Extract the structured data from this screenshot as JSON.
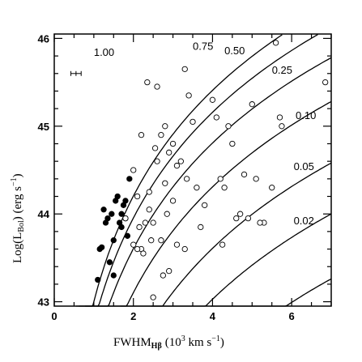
{
  "chart_data": {
    "type": "scatter",
    "xlabel": "FWHM",
    "xlabel_sub": "Hβ",
    "xlabel_units_open": "(10",
    "xlabel_units_sup": "3",
    "xlabel_units_mid": " km s",
    "xlabel_units_sup2": "−1",
    "xlabel_units_close": ")",
    "ylabel": "Log(L",
    "ylabel_sub": "Bol",
    "ylabel_units_open": ")  (erg s",
    "ylabel_units_sup": "−1",
    "ylabel_units_close": ")",
    "xlim": [
      0,
      7
    ],
    "ylim": [
      42.95,
      46.05
    ],
    "x_ticks": [
      0,
      2,
      4,
      6
    ],
    "x_tick_labels": [
      "0",
      "2",
      "4",
      "6"
    ],
    "y_ticks": [
      43,
      44,
      45,
      46
    ],
    "y_tick_labels": [
      "43",
      "44",
      "45",
      "46"
    ],
    "error_bar": {
      "x": 0.55,
      "y": 45.6,
      "xerr": 0.13
    },
    "curves": [
      {
        "label": "1.00",
        "offset": 43.0,
        "x0": 0.55,
        "label_x": 1.0,
        "label_y": 45.8
      },
      {
        "label": "0.75",
        "offset": 42.75,
        "x0": 0.62,
        "label_x": 3.5,
        "label_y": 45.87
      },
      {
        "label": "0.50",
        "offset": 42.4,
        "x0": 0.78,
        "label_x": 4.3,
        "label_y": 45.82
      },
      {
        "label": "0.25",
        "offset": 41.9,
        "x0": 1.07,
        "label_x": 5.5,
        "label_y": 45.6
      },
      {
        "label": "0.10",
        "offset": 41.2,
        "x0": 1.67,
        "label_x": 6.1,
        "label_y": 45.08
      },
      {
        "label": "0.05",
        "offset": 40.62,
        "x0": 2.45,
        "label_x": 6.05,
        "label_y": 44.5
      },
      {
        "label": "0.02",
        "offset": 39.88,
        "x0": 3.95,
        "label_x": 6.05,
        "label_y": 43.88
      }
    ],
    "series": [
      {
        "marker": "filled",
        "points": [
          [
            1.1,
            43.25
          ],
          [
            1.15,
            43.6
          ],
          [
            1.2,
            43.62
          ],
          [
            1.25,
            44.05
          ],
          [
            1.3,
            43.9
          ],
          [
            1.35,
            43.95
          ],
          [
            1.45,
            44.0
          ],
          [
            1.5,
            43.7
          ],
          [
            1.55,
            44.15
          ],
          [
            1.6,
            44.2
          ],
          [
            1.65,
            43.9
          ],
          [
            1.7,
            43.85
          ],
          [
            1.75,
            44.1
          ],
          [
            1.8,
            43.95
          ],
          [
            1.85,
            43.75
          ],
          [
            1.9,
            44.4
          ],
          [
            1.5,
            43.3
          ],
          [
            1.4,
            43.45
          ],
          [
            1.7,
            44.0
          ],
          [
            1.8,
            44.15
          ]
        ]
      },
      {
        "marker": "open",
        "points": [
          [
            1.8,
            43.95
          ],
          [
            2.0,
            44.5
          ],
          [
            2.1,
            44.2
          ],
          [
            2.2,
            43.6
          ],
          [
            2.3,
            43.9
          ],
          [
            2.4,
            44.25
          ],
          [
            2.5,
            43.05
          ],
          [
            2.6,
            44.6
          ],
          [
            2.7,
            44.9
          ],
          [
            2.8,
            45.0
          ],
          [
            2.9,
            44.7
          ],
          [
            3.0,
            44.8
          ],
          [
            3.1,
            44.55
          ],
          [
            3.2,
            44.6
          ],
          [
            3.3,
            45.65
          ],
          [
            3.4,
            45.35
          ],
          [
            3.6,
            44.3
          ],
          [
            3.8,
            44.1
          ],
          [
            4.0,
            45.3
          ],
          [
            4.2,
            44.4
          ],
          [
            4.3,
            44.3
          ],
          [
            4.5,
            44.8
          ],
          [
            4.7,
            44.0
          ],
          [
            4.9,
            43.95
          ],
          [
            5.0,
            45.25
          ],
          [
            5.1,
            44.4
          ],
          [
            5.3,
            43.9
          ],
          [
            5.5,
            44.3
          ],
          [
            5.6,
            45.95
          ],
          [
            5.7,
            45.1
          ],
          [
            5.75,
            45.0
          ],
          [
            6.85,
            45.5
          ],
          [
            2.35,
            45.5
          ],
          [
            2.6,
            45.45
          ],
          [
            2.2,
            44.9
          ],
          [
            2.0,
            43.65
          ],
          [
            2.1,
            43.6
          ],
          [
            2.25,
            43.55
          ],
          [
            2.5,
            43.9
          ],
          [
            2.7,
            43.7
          ],
          [
            2.9,
            43.35
          ],
          [
            3.1,
            43.65
          ],
          [
            3.3,
            43.6
          ],
          [
            2.8,
            44.35
          ],
          [
            3.0,
            44.15
          ],
          [
            4.4,
            45.0
          ],
          [
            4.1,
            45.1
          ],
          [
            3.5,
            45.05
          ],
          [
            4.6,
            43.95
          ],
          [
            5.2,
            43.9
          ],
          [
            4.8,
            44.45
          ],
          [
            2.4,
            44.05
          ],
          [
            2.15,
            43.85
          ],
          [
            2.55,
            44.75
          ],
          [
            3.35,
            44.4
          ],
          [
            2.75,
            43.3
          ],
          [
            4.25,
            43.65
          ],
          [
            3.7,
            43.85
          ],
          [
            2.85,
            44.0
          ],
          [
            2.45,
            43.7
          ]
        ]
      }
    ],
    "grid": false,
    "legend": "none"
  }
}
